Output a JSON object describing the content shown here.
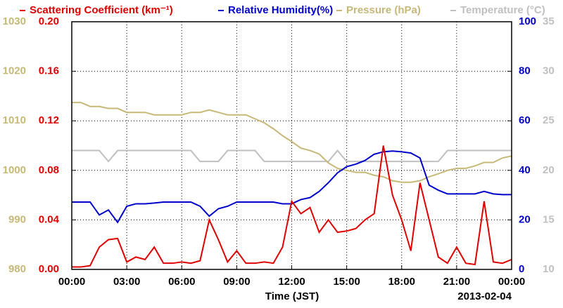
{
  "chart_data": {
    "type": "line",
    "xlabel": "Time (JST)",
    "date_label": "2013-02-04",
    "xlim": [
      0,
      24
    ],
    "xticks": [
      {
        "value": 0,
        "label": "00:00"
      },
      {
        "value": 3,
        "label": "03:00"
      },
      {
        "value": 6,
        "label": "06:00"
      },
      {
        "value": 9,
        "label": "09:00"
      },
      {
        "value": 12,
        "label": "12:00"
      },
      {
        "value": 15,
        "label": "15:00"
      },
      {
        "value": 18,
        "label": "18:00"
      },
      {
        "value": 21,
        "label": "21:00"
      },
      {
        "value": 24,
        "label": "00:00"
      }
    ],
    "ylim": [
      0,
      0.2
    ],
    "yticks": [
      {
        "value": 0,
        "label": "0.00"
      },
      {
        "value": 0.04,
        "label": "0.04"
      },
      {
        "value": 0.08,
        "label": "0.08"
      },
      {
        "value": 0.12,
        "label": "0.12"
      },
      {
        "value": 0.16,
        "label": "0.16"
      },
      {
        "value": 0.2,
        "label": "0.20"
      }
    ],
    "y2lim": [
      0,
      100
    ],
    "y2ticks": [
      0,
      20,
      40,
      60,
      80,
      100
    ],
    "y3lim": [
      980,
      1030
    ],
    "y3ticks": [
      980,
      990,
      1000,
      1010,
      1020,
      1030
    ],
    "y4lim": [
      10,
      35
    ],
    "y4ticks": [
      10,
      15,
      20,
      25,
      30,
      35
    ],
    "grid": true,
    "x": [
      0,
      0.5,
      1,
      1.5,
      2,
      2.5,
      3,
      3.5,
      4,
      4.5,
      5,
      5.5,
      6,
      6.5,
      7,
      7.5,
      8,
      8.5,
      9,
      9.5,
      10,
      10.5,
      11,
      11.5,
      12,
      12.5,
      13,
      13.5,
      14,
      14.5,
      15,
      15.5,
      16,
      16.5,
      17,
      17.5,
      18,
      18.5,
      19,
      19.5,
      20,
      20.5,
      21,
      21.5,
      22,
      22.5,
      23,
      23.5,
      24
    ],
    "series": [
      {
        "name": "Scattering Coefficient (km⁻¹)",
        "color": "#e00000",
        "axis": "y",
        "values": [
          0.002,
          0.002,
          0.003,
          0.018,
          0.024,
          0.025,
          0.006,
          0.01,
          0.008,
          0.018,
          0.005,
          0.005,
          0.006,
          0.005,
          0.007,
          0.04,
          0.024,
          0.006,
          0.015,
          0.005,
          0.005,
          0.006,
          0.005,
          0.018,
          0.055,
          0.045,
          0.05,
          0.03,
          0.04,
          0.03,
          0.031,
          0.033,
          0.04,
          0.045,
          0.1,
          0.06,
          0.04,
          0.015,
          0.07,
          0.04,
          0.01,
          0.005,
          0.018,
          0.005,
          0.004,
          0.055,
          0.006,
          0.005,
          0.008
        ]
      },
      {
        "name": "Relative Humidity(%)",
        "color": "#0000cc",
        "axis": "y2",
        "values": [
          27.2,
          27.2,
          27.2,
          22,
          24,
          19,
          25.5,
          26.5,
          26.5,
          26.8,
          27.2,
          27.2,
          27.2,
          27.2,
          25.5,
          21.5,
          24.5,
          25.5,
          27.2,
          27.2,
          27.2,
          27.2,
          27.2,
          26.5,
          26.5,
          28.2,
          29,
          31.5,
          35,
          39,
          41.5,
          42.5,
          44,
          46.5,
          47.5,
          47.8,
          47.5,
          47,
          45,
          34,
          32,
          30.5,
          30.5,
          30.5,
          30.5,
          31.5,
          30.5,
          30.2,
          30.2
        ]
      },
      {
        "name": "Pressure (hPa)",
        "color": "#c8b878",
        "axis": "y3",
        "values": [
          1013.7,
          1013.7,
          1012.9,
          1012.9,
          1012.5,
          1012.5,
          1011.7,
          1011.7,
          1011.7,
          1011.2,
          1011.2,
          1011.2,
          1011.2,
          1011.7,
          1011.7,
          1012.2,
          1011.7,
          1011.2,
          1011.2,
          1011.2,
          1010.4,
          1009.6,
          1008.4,
          1007,
          1005.8,
          1004.5,
          1004,
          1003.3,
          1001.5,
          1000.4,
          1000,
          999.6,
          999.6,
          999,
          998.7,
          997.9,
          997.6,
          997.6,
          997.9,
          998.7,
          999.3,
          1000,
          1000.4,
          1000.4,
          1000.9,
          1001.6,
          1001.6,
          1002.5,
          1002.9
        ]
      },
      {
        "name": "Temperature (°C)",
        "color": "#c0c0c0",
        "axis": "y4",
        "values": [
          22,
          22,
          22,
          22,
          20.9,
          22,
          22,
          22,
          22,
          22,
          22,
          22,
          22,
          22,
          20.9,
          20.9,
          20.9,
          22,
          22,
          22,
          22,
          20.9,
          20.9,
          20.9,
          20.9,
          20.9,
          20.9,
          20.9,
          20.9,
          22,
          20.9,
          20.9,
          20.9,
          20.9,
          20.9,
          20.9,
          20.9,
          20.9,
          20.9,
          20.9,
          20.9,
          22,
          22,
          22,
          22,
          22,
          22,
          22,
          22
        ]
      }
    ]
  }
}
